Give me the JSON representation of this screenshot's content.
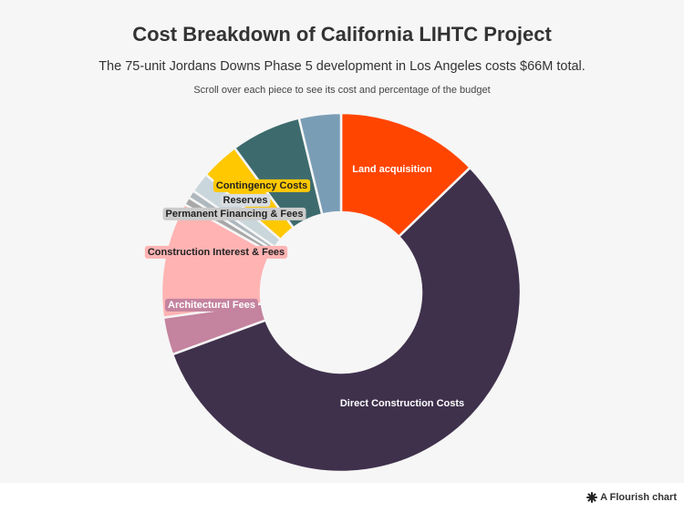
{
  "header": {
    "title": "Cost Breakdown of California LIHTC Project",
    "subtitle": "The 75-unit Jordans Downs Phase 5 development in Los Angeles costs $66M total.",
    "note": "Scroll over each piece to see its cost and percentage of the budget"
  },
  "chart_data": {
    "type": "pie",
    "variant": "donut",
    "title": "Cost Breakdown of California LIHTC Project",
    "total_label": "$66M",
    "unit": "percent of budget (approx.)",
    "slices": [
      {
        "name": "Land acquisition",
        "value": 12.5,
        "color": "#ff4500",
        "label_color": "#ffffff",
        "label_bg": ""
      },
      {
        "name": "Direct Construction Costs",
        "value": 55.5,
        "color": "#3f314c",
        "label_color": "#ffffff",
        "label_bg": ""
      },
      {
        "name": "Architectural Fees",
        "value": 3.3,
        "color": "#c4839e",
        "label_color": "#ffffff",
        "label_bg": "#c4839e"
      },
      {
        "name": "Construction Interest & Fees",
        "value": 10.2,
        "color": "#ffb3b3",
        "label_color": "#222222",
        "label_bg": "#ffb3b3"
      },
      {
        "name": "Permanent Financing & Fees",
        "value": 0.7,
        "color": "#a8a8a8",
        "label_color": "#222222",
        "label_bg": "#cccccc"
      },
      {
        "name": "Reserves",
        "value": 0.7,
        "color": "#aeb8be",
        "label_color": "#222222",
        "label_bg": "#d8dde0"
      },
      {
        "name": "",
        "value": 1.8,
        "color": "#c9d6dc",
        "label_color": "#222222",
        "label_bg": ""
      },
      {
        "name": "Contingency Costs",
        "value": 3.4,
        "color": "#ffc800",
        "label_color": "#222222",
        "label_bg": "#ffc800"
      },
      {
        "name": "",
        "value": 6.2,
        "color": "#3d6b6d",
        "label_color": "#ffffff",
        "label_bg": ""
      },
      {
        "name": "",
        "value": 3.7,
        "color": "#7a9db6",
        "label_color": "#ffffff",
        "label_bg": ""
      }
    ]
  },
  "footer": {
    "brand_label": "A Flourish chart"
  }
}
